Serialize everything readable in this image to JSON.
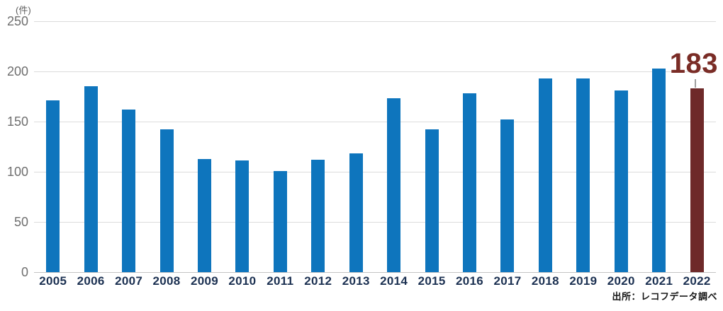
{
  "chart_data": {
    "type": "bar",
    "unit_label": "(件)",
    "categories": [
      "2005",
      "2006",
      "2007",
      "2008",
      "2009",
      "2010",
      "2011",
      "2012",
      "2013",
      "2014",
      "2015",
      "2016",
      "2017",
      "2018",
      "2019",
      "2020",
      "2021",
      "2022"
    ],
    "values": [
      171,
      185,
      162,
      142,
      113,
      111,
      101,
      112,
      118,
      173,
      142,
      178,
      152,
      193,
      193,
      181,
      203,
      183
    ],
    "ylim": [
      0,
      250
    ],
    "yticks": [
      0,
      50,
      100,
      150,
      200,
      250
    ],
    "grid": "horizontal",
    "legend": "none",
    "highlight": {
      "category": "2022",
      "index": 17,
      "label": "183"
    },
    "source": "出所：レコフデータ調べ"
  },
  "colors": {
    "bar": "#0e75bd",
    "bar_highlight": "#6e2929",
    "highlight_label": "#7a2c26",
    "axis_label": "#6e6e6e",
    "category_label": "#1c3152",
    "gridline": "#dcdcdc",
    "baseline": "#c4c4c4"
  }
}
